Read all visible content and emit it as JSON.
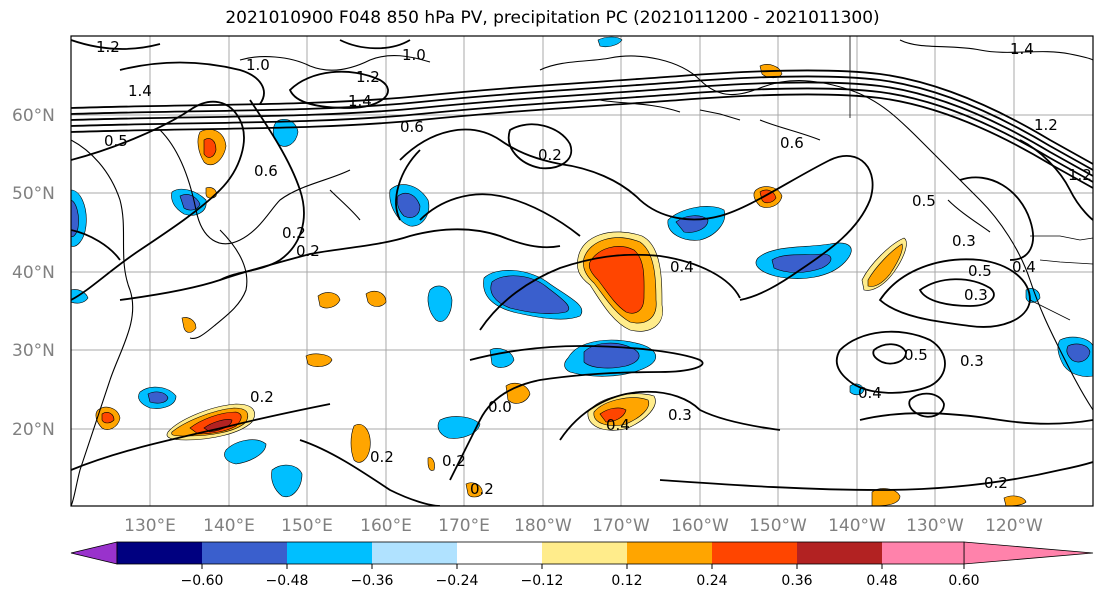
{
  "title": "2021010900 F048 850 hPa PV, precipitation PC (2021011200 - 2021011300)",
  "map": {
    "lat_labels": [
      "60°N",
      "50°N",
      "40°N",
      "30°N",
      "20°N"
    ],
    "lon_labels": [
      "130°E",
      "140°E",
      "150°E",
      "160°E",
      "170°E",
      "180°W",
      "170°W",
      "160°W",
      "150°W",
      "140°W",
      "130°W",
      "120°W"
    ],
    "contour_labels": [
      "1.2",
      "1.0",
      "1.4",
      "1.2",
      "1.4",
      "1.0",
      "0.6",
      "0.5",
      "0.6",
      "0.2",
      "0.2",
      "0.2",
      "0.6",
      "0.4",
      "0.5",
      "0.3",
      "0.4",
      "0.5",
      "0.3",
      "0.3",
      "0.4",
      "0.3",
      "0.2",
      "0.2",
      "0.2",
      "0.0",
      "0.2",
      "0.2",
      "0.4",
      "1.2",
      "1.4",
      "1.2",
      "0.5"
    ]
  },
  "colorbar": {
    "colors": [
      "#9932cc",
      "#000080",
      "#3a5fcd",
      "#00bfff",
      "#b0e2ff",
      "#ffffff",
      "#ffec8b",
      "#ffa500",
      "#ff4500",
      "#b22222",
      "#ff82ab"
    ],
    "tick_labels": [
      "−0.60",
      "−0.48",
      "−0.36",
      "−0.24",
      "−0.12",
      "0.12",
      "0.24",
      "0.36",
      "0.48",
      "0.60"
    ]
  }
}
